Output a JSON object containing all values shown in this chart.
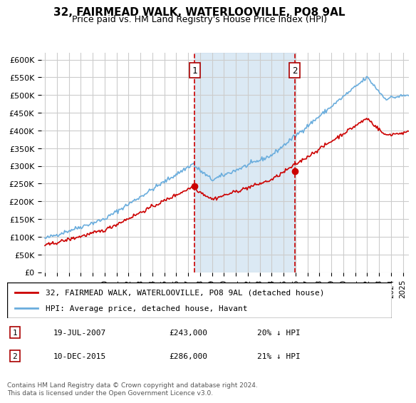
{
  "title": "32, FAIRMEAD WALK, WATERLOOVILLE, PO8 9AL",
  "subtitle": "Price paid vs. HM Land Registry's House Price Index (HPI)",
  "ylabel_ticks": [
    0,
    50000,
    100000,
    150000,
    200000,
    250000,
    300000,
    350000,
    400000,
    450000,
    500000,
    550000,
    600000
  ],
  "ylabel_labels": [
    "£0",
    "£50K",
    "£100K",
    "£150K",
    "£200K",
    "£250K",
    "£300K",
    "£350K",
    "£400K",
    "£450K",
    "£500K",
    "£550K",
    "£600K"
  ],
  "ylim": [
    0,
    620000
  ],
  "xlim_start": 1995.0,
  "xlim_end": 2025.5,
  "purchase1_x": 2007.54,
  "purchase1_y": 243000,
  "purchase1_label": "1",
  "purchase2_x": 2015.94,
  "purchase2_y": 286000,
  "purchase2_label": "2",
  "shade_color": "#cce0f0",
  "shade_alpha": 0.5,
  "hpi_color": "#6aaddd",
  "price_color": "#cc0000",
  "grid_color": "#cccccc",
  "background_color": "#ffffff",
  "legend1_label": "32, FAIRMEAD WALK, WATERLOOVILLE, PO8 9AL (detached house)",
  "legend2_label": "HPI: Average price, detached house, Havant",
  "footnote": "Contains HM Land Registry data © Crown copyright and database right 2024.\nThis data is licensed under the Open Government Licence v3.0.",
  "table_rows": [
    {
      "num": "1",
      "date": "19-JUL-2007",
      "price": "£243,000",
      "hpi": "20% ↓ HPI"
    },
    {
      "num": "2",
      "date": "10-DEC-2015",
      "price": "£286,000",
      "hpi": "21% ↓ HPI"
    }
  ]
}
